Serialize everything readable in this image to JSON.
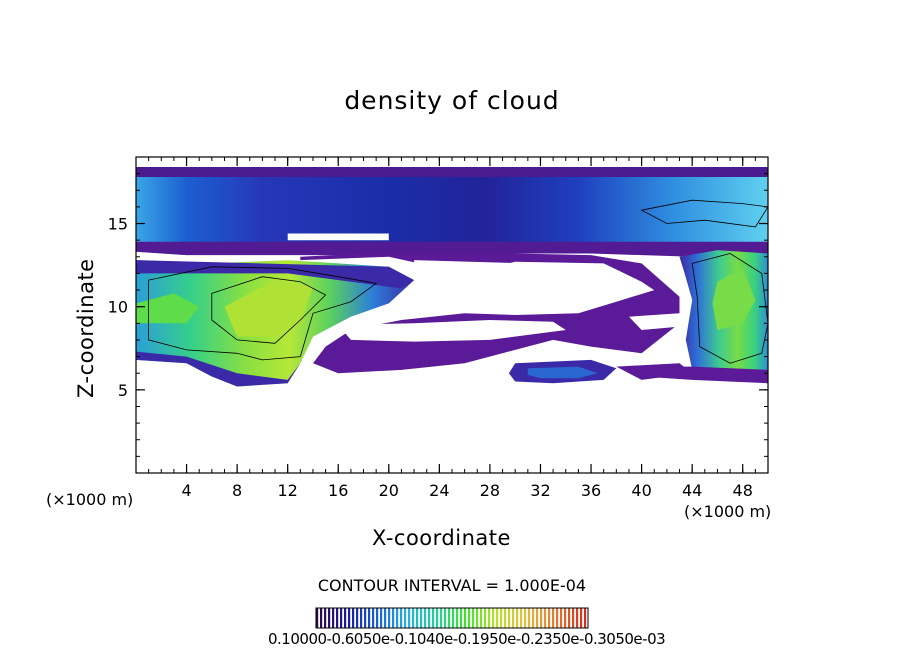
{
  "chart_data": {
    "type": "heatmap",
    "title": "density of cloud",
    "xlabel": "X-coordinate",
    "ylabel": "Z-coordinate",
    "x_unit_left": "(×1000 m)",
    "x_unit_right": "(×1000 m)",
    "xlim": [
      0,
      50
    ],
    "ylim": [
      0,
      19
    ],
    "x_ticks": [
      4,
      8,
      12,
      16,
      20,
      24,
      28,
      32,
      36,
      40,
      44,
      48
    ],
    "y_ticks": [
      5,
      10,
      15
    ],
    "contour_interval_text": "CONTOUR INTERVAL = 1.000E-04",
    "colorbar_labels_text": "0.10000-0.6050e-0.1040e-0.1950e-0.2350e-0.3050e-03",
    "colorbar_colors": [
      "#2d0a4a",
      "#1a1a9e",
      "#1a5fcf",
      "#25b0e0",
      "#22d09a",
      "#44dd33",
      "#b8e030",
      "#e0c040",
      "#e07a30",
      "#d03020"
    ],
    "cloud_regions": [
      {
        "name": "upper-layer",
        "x": [
          0,
          50
        ],
        "z": [
          13.2,
          18.4
        ],
        "level": "low-mid"
      },
      {
        "name": "left-cell",
        "x": [
          0,
          20
        ],
        "z": [
          5.2,
          13.0
        ],
        "level": "high"
      },
      {
        "name": "middle-thin",
        "x": [
          14,
          38
        ],
        "z": [
          6.0,
          12.0
        ],
        "level": "low"
      },
      {
        "name": "lower-band",
        "x": [
          30,
          38
        ],
        "z": [
          5.2,
          7.0
        ],
        "level": "low-mid"
      },
      {
        "name": "right-cell",
        "x": [
          43,
          50
        ],
        "z": [
          5.4,
          13.0
        ],
        "level": "high"
      }
    ]
  }
}
